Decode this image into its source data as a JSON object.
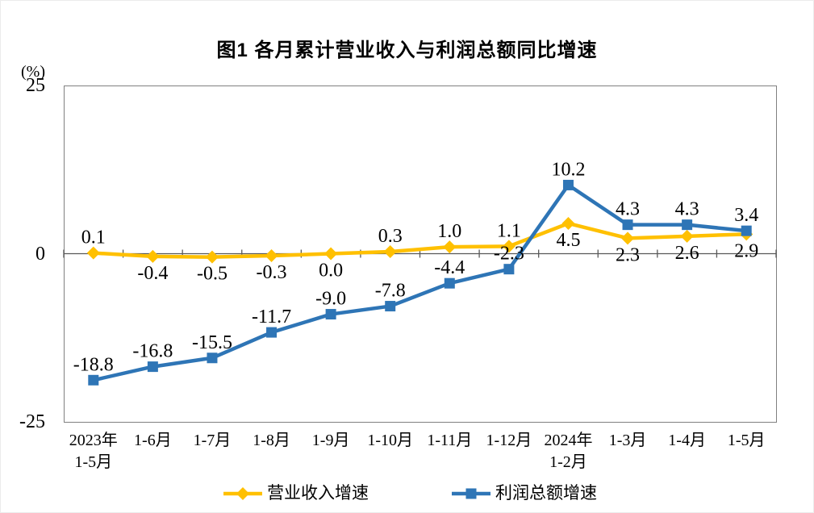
{
  "chart_data": {
    "type": "line",
    "title": "图1  各月累计营业收入与利润总额同比增速",
    "unit": "(%)",
    "ylim": [
      -25,
      25
    ],
    "yticks": [
      25,
      0,
      -25
    ],
    "grid": false,
    "legend_position": "bottom",
    "categories": [
      [
        "2023年",
        "1-5月"
      ],
      [
        "1-6月"
      ],
      [
        "1-7月"
      ],
      [
        "1-8月"
      ],
      [
        "1-9月"
      ],
      [
        "1-10月"
      ],
      [
        "1-11月"
      ],
      [
        "1-12月"
      ],
      [
        "2024年",
        "1-2月"
      ],
      [
        "1-3月"
      ],
      [
        "1-4月"
      ],
      [
        "1-5月"
      ]
    ],
    "series": [
      {
        "name": "营业收入增速",
        "color": "#FFC000",
        "marker": "diamond",
        "values": [
          0.1,
          -0.4,
          -0.5,
          -0.3,
          0.0,
          0.3,
          1.0,
          1.1,
          4.5,
          2.3,
          2.6,
          2.9
        ],
        "label_pos": [
          "above",
          "below",
          "below",
          "below",
          "below",
          "above",
          "above",
          "above",
          "below",
          "below",
          "below",
          "below"
        ]
      },
      {
        "name": "利润总额增速",
        "color": "#2E75B6",
        "marker": "square",
        "values": [
          -18.8,
          -16.8,
          -15.5,
          -11.7,
          -9.0,
          -7.8,
          -4.4,
          -2.3,
          10.2,
          4.3,
          4.3,
          3.4
        ],
        "label_pos": [
          "above",
          "above",
          "above",
          "above",
          "above",
          "above",
          "above",
          "above",
          "above",
          "above",
          "above",
          "above"
        ]
      }
    ],
    "colors": {
      "plot_border": "#808080",
      "zero_axis": "#595959",
      "tick": "#595959",
      "text": "#000000"
    }
  }
}
